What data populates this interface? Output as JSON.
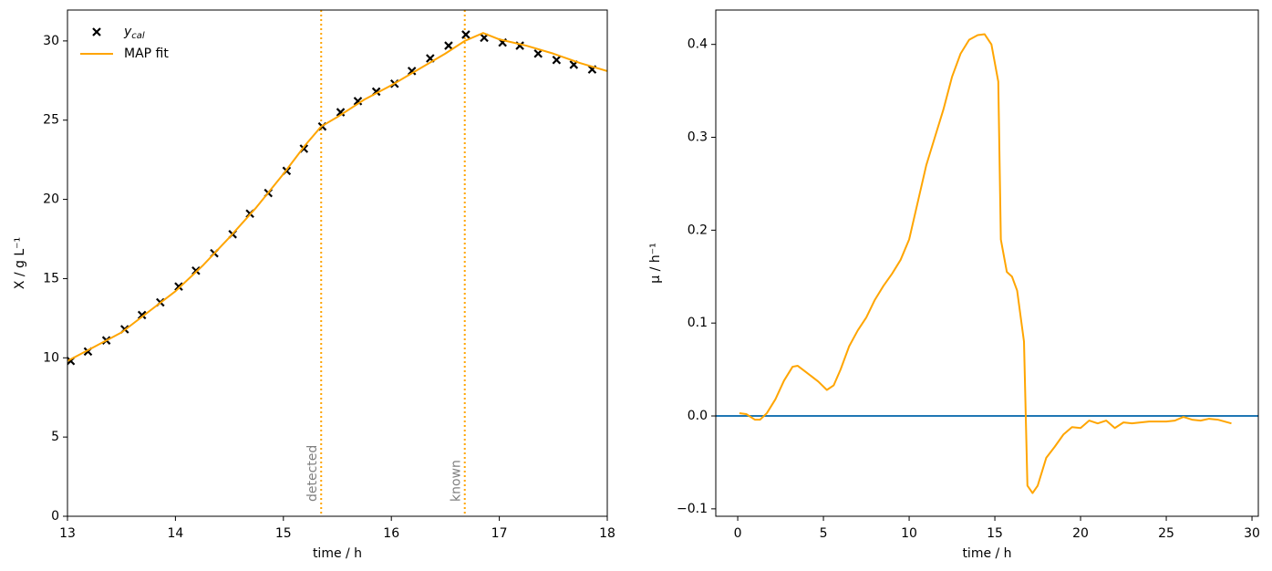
{
  "chart_data": [
    {
      "type": "line",
      "xlabel": "time / h",
      "ylabel": "X / g L⁻¹",
      "xlim": [
        13,
        18
      ],
      "ylim": [
        0,
        31.95
      ],
      "xticks": [
        13,
        14,
        15,
        16,
        17,
        18
      ],
      "yticks": [
        0,
        5,
        10,
        15,
        20,
        25,
        30
      ],
      "legend": "upper left",
      "series": [
        {
          "name": "ycal",
          "style": "scatter",
          "color": "#000000",
          "x": [
            13.03,
            13.19,
            13.36,
            13.53,
            13.69,
            13.86,
            14.03,
            14.19,
            14.36,
            14.53,
            14.69,
            14.86,
            15.03,
            15.19,
            15.36,
            15.53,
            15.69,
            15.86,
            16.03,
            16.19,
            16.36,
            16.53,
            16.69,
            16.86,
            17.03,
            17.19,
            17.36,
            17.53,
            17.69,
            17.86
          ],
          "values": [
            9.8,
            10.4,
            11.1,
            11.8,
            12.7,
            13.5,
            14.5,
            15.5,
            16.6,
            17.8,
            19.1,
            20.4,
            21.8,
            23.2,
            24.6,
            25.5,
            26.2,
            26.8,
            27.3,
            28.1,
            28.9,
            29.7,
            30.4,
            30.2,
            29.9,
            29.7,
            29.2,
            28.8,
            28.5,
            28.2
          ]
        },
        {
          "name": "MAP fit",
          "style": "line",
          "color": "#ffa500",
          "x": [
            13.0,
            13.5,
            14.0,
            14.25,
            14.5,
            14.75,
            15.0,
            15.2,
            15.35,
            15.5,
            15.75,
            16.0,
            16.25,
            16.5,
            16.68,
            16.85,
            17.0,
            17.25,
            17.5,
            17.75,
            18.0
          ],
          "values": [
            9.8,
            11.6,
            14.2,
            15.8,
            17.6,
            19.5,
            21.6,
            23.4,
            24.6,
            25.2,
            26.3,
            27.2,
            28.2,
            29.2,
            30.0,
            30.5,
            30.1,
            29.7,
            29.2,
            28.6,
            28.1
          ]
        }
      ],
      "vlines": [
        {
          "x": 15.35,
          "label": "detected",
          "color": "#ffa500"
        },
        {
          "x": 16.68,
          "label": "known",
          "color": "#ffa500"
        }
      ]
    },
    {
      "type": "line",
      "xlabel": "time / h",
      "ylabel": "μ / h⁻¹",
      "xlim": [
        -1.28,
        30.37
      ],
      "ylim": [
        -0.108,
        0.437
      ],
      "xticks": [
        0,
        5,
        10,
        15,
        20,
        25,
        30
      ],
      "yticks": [
        {
          "value": -0.1,
          "label": "−0.1"
        },
        {
          "value": 0,
          "label": "0.0"
        },
        {
          "value": 0.1,
          "label": "0.1"
        },
        {
          "value": 0.2,
          "label": "0.2"
        },
        {
          "value": 0.3,
          "label": "0.3"
        },
        {
          "value": 0.4,
          "label": "0.4"
        }
      ],
      "hlines": [
        {
          "y": 0,
          "color": "#1f77b4"
        }
      ],
      "series": [
        {
          "style": "line",
          "color": "#ffa500",
          "x": [
            0.1,
            0.5,
            1,
            1.3,
            1.7,
            2.2,
            2.7,
            3.2,
            3.5,
            4,
            4.7,
            5.2,
            5.6,
            6,
            6.5,
            7,
            7.5,
            8,
            8.5,
            9,
            9.5,
            10,
            10.5,
            11,
            11.5,
            12,
            12.5,
            13,
            13.5,
            14,
            14.4,
            14.8,
            15.2,
            15.35,
            15.7,
            16,
            16.3,
            16.7,
            16.9,
            17.2,
            17.5,
            18,
            18.5,
            19,
            19.5,
            20,
            20.5,
            21,
            21.5,
            22,
            22.5,
            23,
            23.5,
            24,
            24.5,
            25,
            25.5,
            26,
            26.5,
            27,
            27.5,
            28,
            28.8
          ],
          "values": [
            0.003,
            0.002,
            -0.004,
            -0.004,
            0.003,
            0.018,
            0.038,
            0.053,
            0.054,
            0.047,
            0.037,
            0.028,
            0.033,
            0.05,
            0.075,
            0.092,
            0.106,
            0.125,
            0.14,
            0.153,
            0.168,
            0.19,
            0.23,
            0.27,
            0.3,
            0.33,
            0.365,
            0.39,
            0.405,
            0.41,
            0.411,
            0.4,
            0.36,
            0.19,
            0.155,
            0.15,
            0.135,
            0.08,
            -0.075,
            -0.083,
            -0.075,
            -0.045,
            -0.033,
            -0.02,
            -0.012,
            -0.013,
            -0.005,
            -0.008,
            -0.005,
            -0.013,
            -0.007,
            -0.008,
            -0.007,
            -0.006,
            -0.006,
            -0.006,
            -0.005,
            -0.001,
            -0.004,
            -0.005,
            -0.003,
            -0.004,
            -0.008
          ]
        }
      ]
    }
  ]
}
